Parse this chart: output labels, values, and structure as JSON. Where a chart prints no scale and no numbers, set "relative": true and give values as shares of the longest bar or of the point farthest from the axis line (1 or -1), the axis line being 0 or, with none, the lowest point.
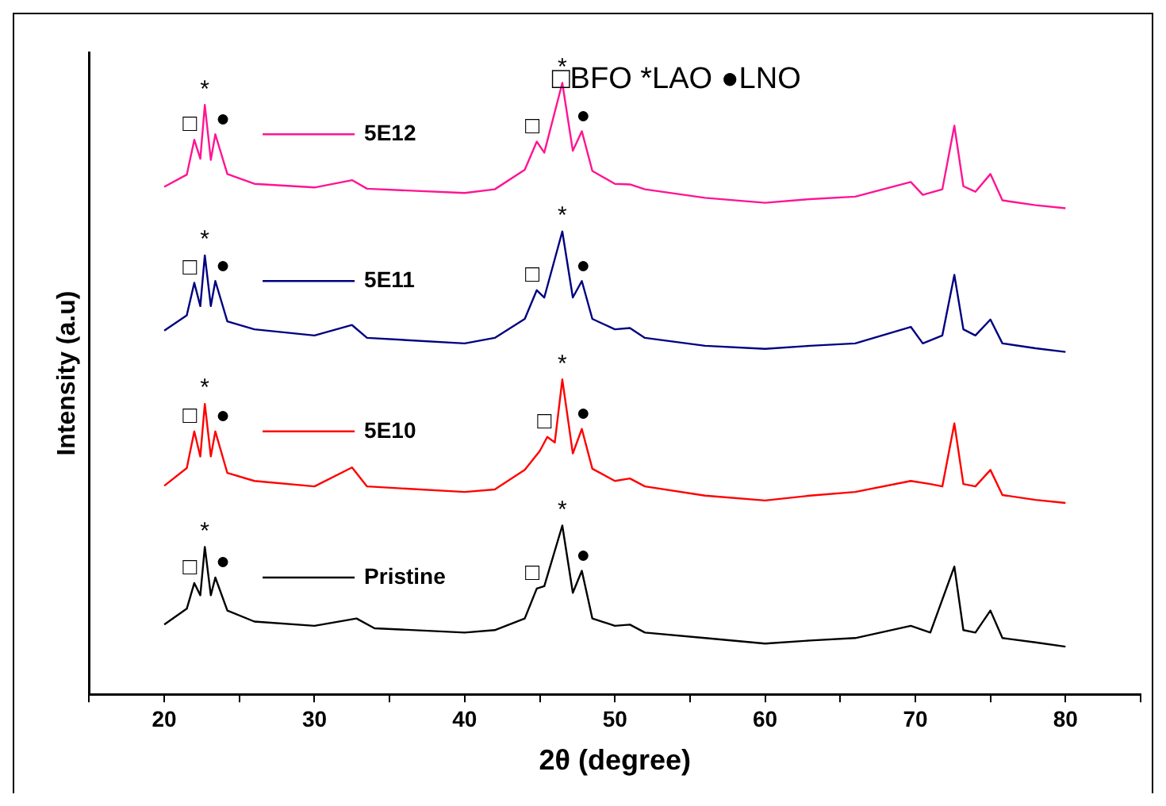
{
  "chart_data": {
    "type": "line",
    "xlabel": "2θ (degree)",
    "ylabel": "Intensity (a.u)",
    "relative": true,
    "xlim": [
      15,
      85
    ],
    "xticks": [
      {
        "value": 15,
        "label": null
      },
      20,
      {
        "value": 25,
        "label": null
      },
      30,
      {
        "value": 35,
        "label": null
      },
      40,
      {
        "value": 45,
        "label": null
      },
      50,
      {
        "value": 55,
        "label": null
      },
      60,
      {
        "value": 65,
        "label": null
      },
      70,
      {
        "value": 75,
        "label": null
      },
      80,
      {
        "value": 85,
        "label": null
      }
    ],
    "grid": false,
    "legend": "left",
    "marker": "none",
    "line_style": "solid",
    "series": [
      {
        "name": "5E12",
        "color": "#ff1493",
        "x": [
          20,
          21.5,
          22.0,
          22.4,
          22.7,
          23.1,
          23.4,
          24.2,
          26,
          30,
          32.5,
          33.5,
          40,
          42,
          44,
          44.8,
          45.3,
          46.5,
          47.2,
          47.8,
          48.5,
          50,
          51,
          52,
          56,
          60,
          63,
          66,
          69.7,
          70.5,
          71.8,
          72.6,
          73.2,
          74,
          75,
          75.8,
          78,
          80
        ],
        "values": [
          0.83,
          0.85,
          0.907,
          0.876,
          0.964,
          0.874,
          0.916,
          0.851,
          0.835,
          0.829,
          0.841,
          0.827,
          0.82,
          0.826,
          0.858,
          0.904,
          0.886,
          1,
          0.889,
          0.921,
          0.856,
          0.835,
          0.834,
          0.826,
          0.812,
          0.804,
          0.81,
          0.814,
          0.838,
          0.817,
          0.826,
          0.93,
          0.831,
          0.822,
          0.851,
          0.808,
          0.8,
          0.795
        ]
      },
      {
        "name": "5E11",
        "color": "#000080",
        "x": [
          20,
          21.5,
          22.0,
          22.4,
          22.7,
          23.1,
          23.4,
          24.2,
          26,
          30,
          32.5,
          33.5,
          40,
          42,
          44,
          44.8,
          45.3,
          46.5,
          47.2,
          47.8,
          48.5,
          50,
          51,
          52,
          56,
          60,
          63,
          66,
          69.7,
          70.5,
          71.8,
          72.6,
          73.2,
          74,
          75,
          75.8,
          78,
          80
        ],
        "values": [
          0.595,
          0.62,
          0.673,
          0.635,
          0.718,
          0.635,
          0.676,
          0.61,
          0.597,
          0.587,
          0.604,
          0.583,
          0.574,
          0.583,
          0.614,
          0.661,
          0.649,
          0.757,
          0.649,
          0.676,
          0.614,
          0.597,
          0.599,
          0.583,
          0.57,
          0.565,
          0.57,
          0.574,
          0.601,
          0.574,
          0.587,
          0.686,
          0.597,
          0.587,
          0.613,
          0.574,
          0.566,
          0.56
        ]
      },
      {
        "name": "5E10",
        "color": "#ff0000",
        "x": [
          20,
          21.5,
          22.0,
          22.4,
          22.7,
          23.1,
          23.4,
          24.2,
          26,
          30,
          32.5,
          33.5,
          40,
          42,
          44,
          45.0,
          45.5,
          46.0,
          46.5,
          47.2,
          47.8,
          48.5,
          50,
          51,
          52,
          56,
          60,
          63,
          66,
          69.7,
          71,
          71.8,
          72.6,
          73.2,
          74,
          75,
          75.8,
          78,
          80
        ],
        "values": [
          0.341,
          0.37,
          0.43,
          0.389,
          0.475,
          0.389,
          0.43,
          0.362,
          0.349,
          0.34,
          0.371,
          0.34,
          0.331,
          0.335,
          0.367,
          0.398,
          0.421,
          0.412,
          0.515,
          0.394,
          0.434,
          0.369,
          0.349,
          0.353,
          0.34,
          0.325,
          0.317,
          0.325,
          0.331,
          0.349,
          0.344,
          0.34,
          0.443,
          0.344,
          0.34,
          0.367,
          0.326,
          0.318,
          0.313
        ]
      },
      {
        "name": "Pristine",
        "color": "#000000",
        "x": [
          20,
          21.5,
          22.0,
          22.4,
          22.7,
          23.1,
          23.4,
          24.2,
          26,
          30,
          32.8,
          34,
          40,
          42,
          44,
          44.8,
          45.3,
          46.5,
          47.2,
          47.8,
          48.5,
          50,
          51,
          52,
          56,
          60,
          63,
          66,
          69.7,
          71,
          72.6,
          73.2,
          74,
          75,
          75.8,
          78,
          80
        ],
        "values": [
          0.114,
          0.14,
          0.182,
          0.162,
          0.241,
          0.162,
          0.191,
          0.137,
          0.119,
          0.112,
          0.124,
          0.108,
          0.101,
          0.105,
          0.124,
          0.173,
          0.177,
          0.276,
          0.166,
          0.202,
          0.124,
          0.112,
          0.114,
          0.101,
          0.092,
          0.083,
          0.088,
          0.092,
          0.112,
          0.101,
          0.209,
          0.105,
          0.101,
          0.137,
          0.092,
          0.085,
          0.078
        ]
      }
    ],
    "annotations": [
      "□BFO *LAO ●LNO",
      {
        "text": "□",
        "x": 21.7,
        "y": 0.907
      },
      {
        "text": "*",
        "x": 22.7,
        "y": 0.964
      },
      {
        "text": "●",
        "x": 23.9,
        "y": 0.916
      },
      {
        "text": "□",
        "x": 44.5,
        "y": 0.904
      },
      {
        "text": "*",
        "x": 46.5,
        "y": 1
      },
      {
        "text": "●",
        "x": 47.9,
        "y": 0.921
      },
      {
        "text": "□",
        "x": 21.7,
        "y": 0.673
      },
      {
        "text": "*",
        "x": 22.7,
        "y": 0.718
      },
      {
        "text": "●",
        "x": 23.9,
        "y": 0.676
      },
      {
        "text": "□",
        "x": 44.5,
        "y": 0.661
      },
      {
        "text": "*",
        "x": 46.5,
        "y": 0.757
      },
      {
        "text": "●",
        "x": 47.9,
        "y": 0.676
      },
      {
        "text": "□",
        "x": 21.7,
        "y": 0.43
      },
      {
        "text": "*",
        "x": 22.7,
        "y": 0.475
      },
      {
        "text": "●",
        "x": 23.9,
        "y": 0.43
      },
      {
        "text": "□",
        "x": 45.3,
        "y": 0.421
      },
      {
        "text": "*",
        "x": 46.5,
        "y": 0.515
      },
      {
        "text": "●",
        "x": 47.9,
        "y": 0.434
      },
      {
        "text": "□",
        "x": 21.7,
        "y": 0.182
      },
      {
        "text": "*",
        "x": 22.7,
        "y": 0.241
      },
      {
        "text": "●",
        "x": 23.9,
        "y": 0.191
      },
      {
        "text": "□",
        "x": 44.5,
        "y": 0.173
      },
      {
        "text": "*",
        "x": 46.5,
        "y": 0.276
      },
      {
        "text": "●",
        "x": 47.9,
        "y": 0.202
      }
    ]
  }
}
